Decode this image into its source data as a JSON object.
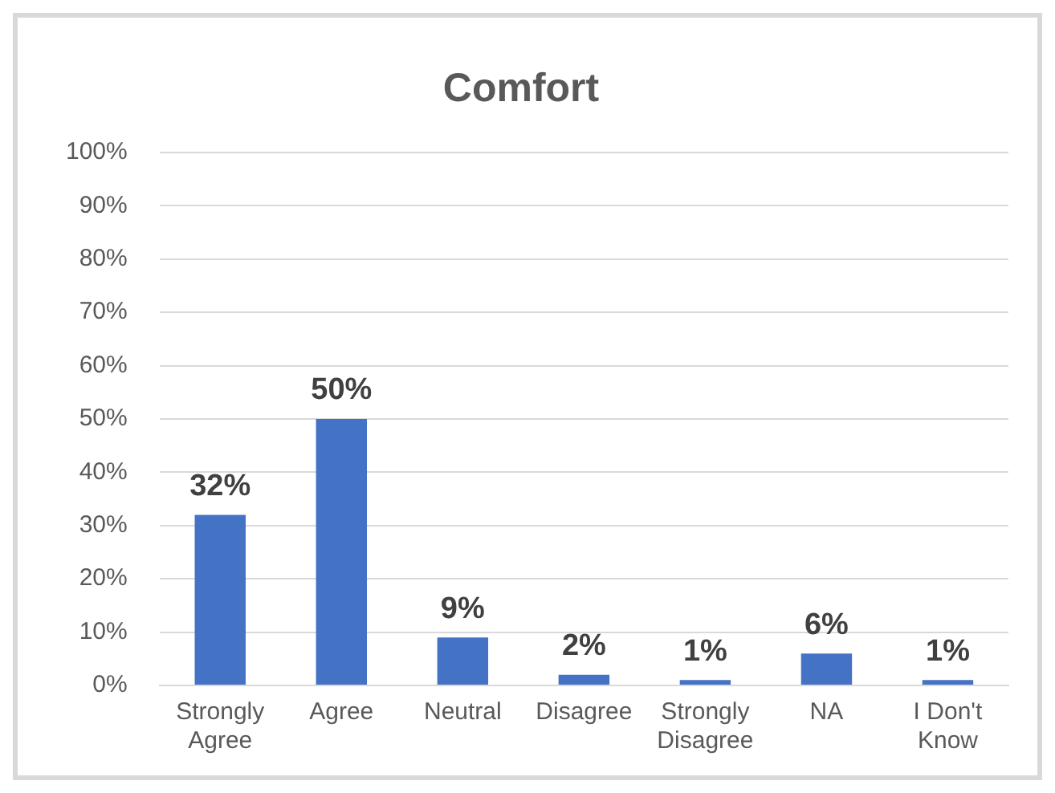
{
  "chart_data": {
    "type": "bar",
    "title": "Comfort",
    "categories": [
      "Strongly Agree",
      "Agree",
      "Neutral",
      "Disagree",
      "Strongly Disagree",
      "NA",
      "I Don't Know"
    ],
    "values": [
      32,
      50,
      9,
      2,
      1,
      6,
      1
    ],
    "value_labels": [
      "32%",
      "50%",
      "9%",
      "2%",
      "1%",
      "6%",
      "1%"
    ],
    "color": "#4472c4",
    "ylim": [
      0,
      100
    ],
    "yticks": [
      {
        "value": 0,
        "label": "0%"
      },
      {
        "value": 10,
        "label": "10%"
      },
      {
        "value": 20,
        "label": "20%"
      },
      {
        "value": 30,
        "label": "30%"
      },
      {
        "value": 40,
        "label": "40%"
      },
      {
        "value": 50,
        "label": "50%"
      },
      {
        "value": 60,
        "label": "60%"
      },
      {
        "value": 70,
        "label": "70%"
      },
      {
        "value": 80,
        "label": "80%"
      },
      {
        "value": 90,
        "label": "90%"
      },
      {
        "value": 100,
        "label": "100%"
      }
    ],
    "grid": "y",
    "legend": false
  }
}
